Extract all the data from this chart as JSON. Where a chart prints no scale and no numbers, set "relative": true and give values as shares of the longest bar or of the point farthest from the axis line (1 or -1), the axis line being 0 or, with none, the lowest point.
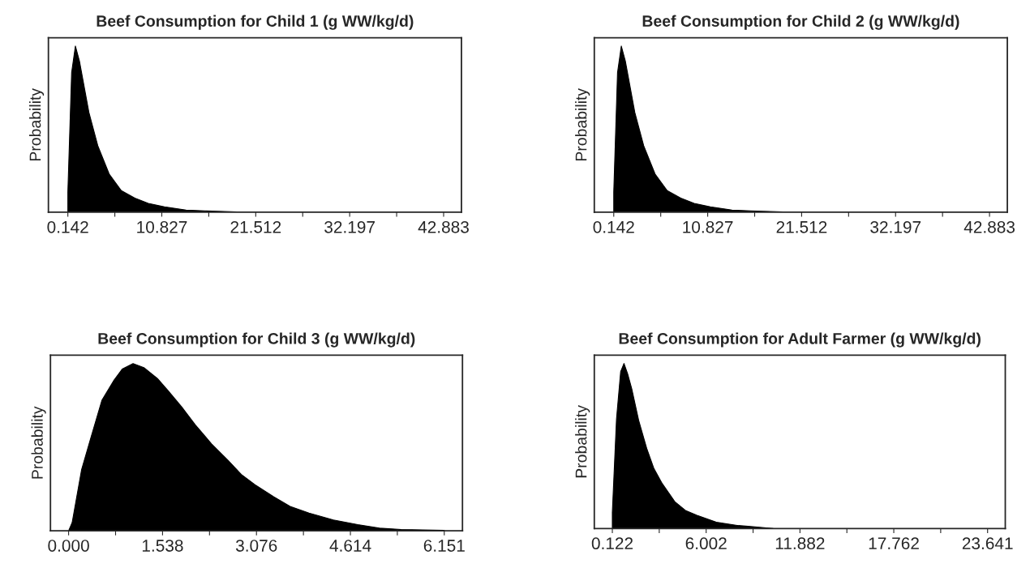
{
  "chart_data": [
    {
      "type": "area",
      "title": "Beef Consumption for Child 1 (g WW/kg/d)",
      "ylabel": "Probability",
      "relative": true,
      "color": "#000000",
      "x": [
        0.142,
        0.142,
        0.572,
        1.0,
        1.46,
        2.54,
        3.55,
        4.84,
        6.22,
        7.76,
        9.29,
        11.13,
        13.59,
        15.74,
        19.42,
        22.5
      ],
      "values": [
        0,
        0.12,
        0.84,
        1.0,
        0.91,
        0.6,
        0.4,
        0.23,
        0.13,
        0.085,
        0.053,
        0.032,
        0.013,
        0.008,
        0.002,
        0
      ],
      "xlim": [
        -2.07,
        44.91
      ],
      "xticks": [
        0.142,
        {
          "value": 5.4845,
          "label": null
        },
        10.827,
        {
          "value": 16.1695,
          "label": null
        },
        21.512,
        {
          "value": 26.8545,
          "label": null
        },
        32.197,
        {
          "value": 37.54,
          "label": null
        },
        42.883
      ],
      "tick_labels": "x"
    },
    {
      "type": "area",
      "title": "Beef Consumption for Child 2 (g WW/kg/d)",
      "ylabel": "Probability",
      "relative": true,
      "color": "#000000",
      "x": [
        0.142,
        0.142,
        0.572,
        1.0,
        1.46,
        2.54,
        3.55,
        4.84,
        6.22,
        7.76,
        9.29,
        11.13,
        13.59,
        15.74,
        19.42,
        22.5
      ],
      "values": [
        0,
        0.12,
        0.84,
        1.0,
        0.91,
        0.6,
        0.4,
        0.23,
        0.13,
        0.085,
        0.053,
        0.032,
        0.013,
        0.008,
        0.002,
        0
      ],
      "xlim": [
        -2.07,
        44.91
      ],
      "xticks": [
        0.142,
        {
          "value": 5.4845,
          "label": null
        },
        10.827,
        {
          "value": 16.1695,
          "label": null
        },
        21.512,
        {
          "value": 26.8545,
          "label": null
        },
        32.197,
        {
          "value": 37.54,
          "label": null
        },
        42.883
      ],
      "tick_labels": "x"
    },
    {
      "type": "area",
      "title": "Beef Consumption for Child 3 (g WW/kg/d)",
      "ylabel": "Probability",
      "relative": true,
      "color": "#000000",
      "x": [
        0,
        0.058,
        0.213,
        0.368,
        0.545,
        0.745,
        0.878,
        1.055,
        1.232,
        1.454,
        1.631,
        1.853,
        2.074,
        2.34,
        2.606,
        2.828,
        3.05,
        3.36,
        3.626,
        3.936,
        4.335,
        4.734,
        5.089,
        5.443,
        6.151,
        6.151
      ],
      "values": [
        0,
        0.049,
        0.366,
        0.561,
        0.78,
        0.902,
        0.967,
        1.0,
        0.976,
        0.911,
        0.837,
        0.74,
        0.634,
        0.52,
        0.423,
        0.337,
        0.276,
        0.203,
        0.146,
        0.106,
        0.065,
        0.037,
        0.016,
        0.008,
        0.003,
        0
      ],
      "xlim": [
        -0.297,
        6.449
      ],
      "xticks": [
        "0.000",
        {
          "value": 0.769,
          "label": null
        },
        1.538,
        {
          "value": 2.307,
          "label": null
        },
        3.076,
        {
          "value": 3.845,
          "label": null
        },
        4.614,
        {
          "value": 5.3825,
          "label": null
        },
        6.151
      ],
      "tick_labels": "x"
    },
    {
      "type": "area",
      "title": "Beef Consumption for Adult Farmer (g WW/kg/d)",
      "ylabel": "Probability",
      "relative": true,
      "color": "#000000",
      "x": [
        0.122,
        0.122,
        0.383,
        0.643,
        0.852,
        1.078,
        1.339,
        1.773,
        2.295,
        2.729,
        3.25,
        4.033,
        4.728,
        5.423,
        6.64,
        8.03,
        9.07,
        10.2
      ],
      "values": [
        0,
        0.097,
        0.663,
        0.95,
        1.0,
        0.938,
        0.847,
        0.655,
        0.48,
        0.363,
        0.272,
        0.163,
        0.108,
        0.08,
        0.038,
        0.018,
        0.01,
        0
      ],
      "xlim": [
        -1.008,
        24.75
      ],
      "xticks": [
        0.122,
        {
          "value": 3.062,
          "label": null
        },
        6.002,
        {
          "value": 8.942,
          "label": null
        },
        11.882,
        {
          "value": 14.822,
          "label": null
        },
        17.762,
        {
          "value": 20.7015,
          "label": null
        },
        23.641
      ],
      "tick_labels": "x"
    }
  ]
}
